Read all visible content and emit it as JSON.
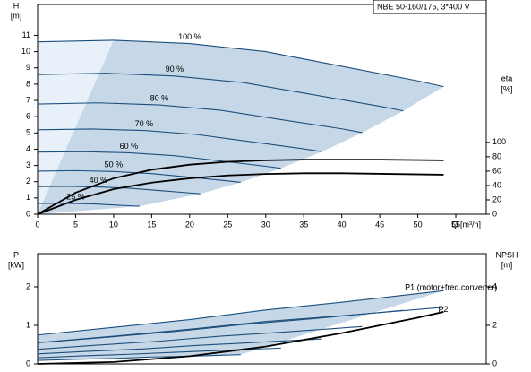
{
  "chart_data": [
    {
      "type": "line",
      "title": "NBE 50-160/175, 3*400 V",
      "y_label": "H",
      "y_unit": "[m]",
      "y2_label": "eta",
      "y2_unit": "[%]",
      "x_label": "Q [m³/h]",
      "xlim": [
        0,
        59
      ],
      "xticks": [
        0,
        5,
        10,
        15,
        20,
        25,
        30,
        35,
        40,
        45,
        50,
        55
      ],
      "ylim": [
        0,
        12.9
      ],
      "yticks": [
        0,
        1,
        2,
        3,
        4,
        5,
        6,
        7,
        8,
        9,
        10,
        11
      ],
      "y2lim": [
        0,
        292
      ],
      "y2ticks": [
        0,
        20,
        40,
        60,
        80,
        100
      ],
      "series": [
        {
          "name": "100 %",
          "color": "#1d4f7c",
          "x": [
            0,
            10,
            20,
            30,
            40,
            50,
            53.4
          ],
          "values": [
            10.6,
            10.7,
            10.5,
            10.0,
            9.1,
            8.2,
            7.85
          ]
        },
        {
          "name": "90 %",
          "color": "#1d4f7c",
          "x": [
            0,
            9,
            18,
            27,
            36,
            45,
            48.1
          ],
          "values": [
            8.59,
            8.67,
            8.5,
            8.1,
            7.37,
            6.64,
            6.36
          ]
        },
        {
          "name": "80 %",
          "color": "#1d4f7c",
          "x": [
            0,
            8,
            16,
            24,
            32,
            40,
            42.7
          ],
          "values": [
            6.78,
            6.85,
            6.72,
            6.4,
            5.82,
            5.25,
            5.02
          ]
        },
        {
          "name": "70 %",
          "color": "#1d4f7c",
          "x": [
            0,
            7,
            14,
            21,
            28,
            35,
            37.4
          ],
          "values": [
            5.19,
            5.24,
            5.15,
            4.9,
            4.46,
            4.02,
            3.85
          ]
        },
        {
          "name": "60 %",
          "color": "#1d4f7c",
          "x": [
            0,
            6,
            12,
            18,
            24,
            30,
            32
          ],
          "values": [
            3.82,
            3.85,
            3.78,
            3.6,
            3.28,
            2.95,
            2.83
          ]
        },
        {
          "name": "50 %",
          "color": "#1d4f7c",
          "x": [
            0,
            5,
            10,
            15,
            20,
            25,
            26.7
          ],
          "values": [
            2.65,
            2.68,
            2.63,
            2.5,
            2.28,
            2.05,
            1.96
          ]
        },
        {
          "name": "40 %",
          "color": "#1d4f7c",
          "x": [
            0,
            4,
            8,
            12,
            16,
            20,
            21.4
          ],
          "values": [
            1.7,
            1.71,
            1.68,
            1.6,
            1.46,
            1.31,
            1.26
          ]
        },
        {
          "name": "25 %",
          "color": "#1d4f7c",
          "x": [
            0,
            2.5,
            5,
            7.5,
            10,
            12.5,
            13.4
          ],
          "values": [
            0.66,
            0.67,
            0.66,
            0.63,
            0.57,
            0.51,
            0.49
          ]
        },
        {
          "axis": "y2",
          "color": "#000000",
          "x": [
            0,
            5,
            10,
            15,
            20,
            25,
            30,
            35,
            40,
            45,
            53.4
          ],
          "values": [
            0,
            30,
            50,
            62,
            69,
            73,
            75,
            76,
            76,
            76,
            75
          ]
        },
        {
          "axis": "y2",
          "color": "#000000",
          "x": [
            0,
            5,
            10,
            15,
            20,
            25,
            30,
            35,
            40,
            53.4
          ],
          "values": [
            0,
            20,
            35,
            44,
            50,
            54,
            56,
            57,
            57,
            55
          ]
        }
      ]
    },
    {
      "type": "line",
      "y_label": "P",
      "y_unit": "[kW]",
      "y2_label": "NPSH",
      "y2_unit": "[m]",
      "xlim": [
        0,
        59
      ],
      "ylim": [
        0,
        2.86
      ],
      "yticks": [
        0,
        1,
        2
      ],
      "y2lim": [
        0,
        5.72
      ],
      "y2ticks": [
        0,
        2,
        4
      ],
      "series": [
        {
          "name": "P1 (motor+freq.converter)",
          "color": "#1d4f7c",
          "x": [
            0,
            10,
            20,
            30,
            40,
            53.4
          ],
          "values": [
            0.75,
            0.95,
            1.15,
            1.4,
            1.6,
            1.9
          ]
        },
        {
          "name": "P2",
          "color": "#1d4f7c",
          "x": [
            0,
            10,
            20,
            30,
            40,
            53.4
          ],
          "values": [
            0.55,
            0.72,
            0.9,
            1.1,
            1.25,
            1.47
          ]
        },
        {
          "color": "#1d4f7c",
          "x": [
            0,
            9,
            18,
            27,
            36,
            48.1
          ],
          "values": [
            0.55,
            0.69,
            0.84,
            1.02,
            1.17,
            1.39
          ]
        },
        {
          "color": "#1d4f7c",
          "x": [
            0,
            8,
            16,
            24,
            32,
            42.7
          ],
          "values": [
            0.38,
            0.49,
            0.59,
            0.72,
            0.82,
            0.97
          ]
        },
        {
          "color": "#1d4f7c",
          "x": [
            0,
            7,
            14,
            21,
            28,
            37.4
          ],
          "values": [
            0.26,
            0.33,
            0.39,
            0.48,
            0.55,
            0.65
          ]
        },
        {
          "color": "#1d4f7c",
          "x": [
            0,
            6,
            12,
            18,
            24,
            32
          ],
          "values": [
            0.16,
            0.21,
            0.25,
            0.3,
            0.35,
            0.41
          ]
        },
        {
          "color": "#1d4f7c",
          "x": [
            0,
            5,
            10,
            15,
            20,
            26.7
          ],
          "values": [
            0.09,
            0.12,
            0.14,
            0.18,
            0.2,
            0.24
          ]
        },
        {
          "axis": "y2",
          "color": "#000000",
          "x": [
            0,
            10,
            20,
            30,
            40,
            50,
            53.4
          ],
          "values": [
            0,
            0.1,
            0.4,
            0.9,
            1.6,
            2.4,
            2.7
          ]
        }
      ]
    }
  ]
}
